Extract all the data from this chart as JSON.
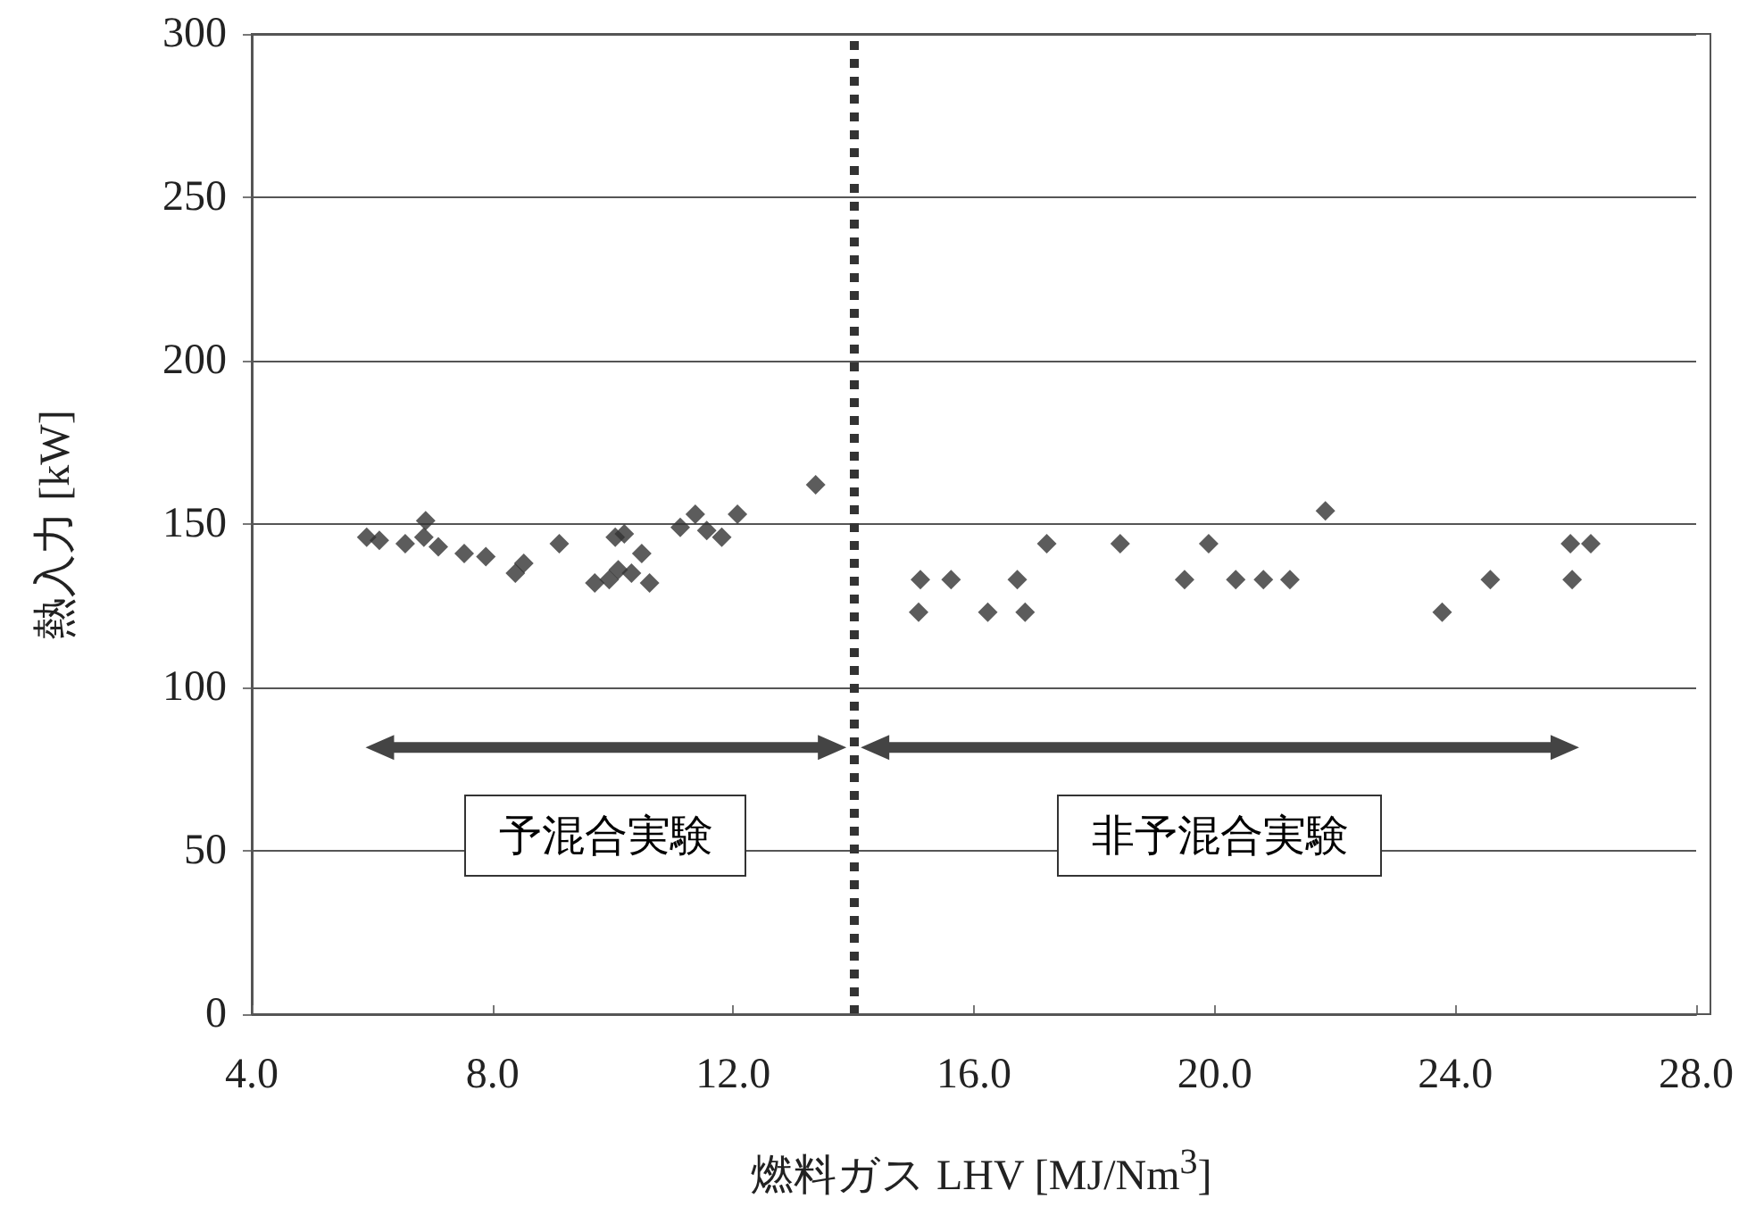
{
  "chart_data": {
    "type": "scatter",
    "xlabel": "燃料ガス LHV [MJ/Nm$^{3}$]",
    "ylabel": "熱入力 [kW]",
    "x": [
      5.91,
      6.12,
      6.55,
      6.89,
      6.86,
      7.1,
      7.53,
      7.89,
      8.38,
      8.52,
      9.11,
      9.7,
      9.94,
      10.09,
      10.04,
      10.19,
      10.31,
      10.48,
      10.61,
      11.12,
      11.37,
      11.56,
      11.81,
      12.07,
      13.37,
      15.08,
      15.11,
      15.62,
      16.23,
      16.72,
      16.85,
      17.21,
      18.43,
      19.5,
      19.9,
      20.35,
      20.81,
      21.25,
      21.84,
      23.78,
      24.58,
      25.91,
      25.94,
      26.25
    ],
    "values": [
      146,
      145,
      144,
      151,
      146,
      143,
      141,
      140,
      135,
      138,
      144,
      132,
      133,
      136,
      146,
      147,
      135,
      141,
      132,
      149,
      153,
      148,
      146,
      153,
      162,
      123,
      133,
      133,
      123,
      133,
      123,
      144,
      144,
      133,
      144,
      133,
      133,
      133,
      154,
      123,
      133,
      144,
      133,
      144
    ],
    "color": "#333333",
    "marker": "diamond",
    "xlim": [
      4,
      28
    ],
    "xticks": [
      {
        "value": 4,
        "label": "4.0"
      },
      {
        "value": 8,
        "label": "8.0"
      },
      {
        "value": 12,
        "label": "12.0"
      },
      {
        "value": 16,
        "label": "16.0"
      },
      {
        "value": 20,
        "label": "20.0"
      },
      {
        "value": 24,
        "label": "24.0"
      },
      {
        "value": 28,
        "label": "28.0"
      }
    ],
    "ylim": [
      0,
      300
    ],
    "yticks": [
      0,
      50,
      100,
      150,
      200,
      250,
      300
    ],
    "grid": "y",
    "ref_lines": [
      {
        "axis": "x",
        "value": 14,
        "color": "#333333",
        "line_style": "dotted"
      }
    ],
    "annotations": [
      "予混合実験",
      "非予混合実験"
    ]
  }
}
